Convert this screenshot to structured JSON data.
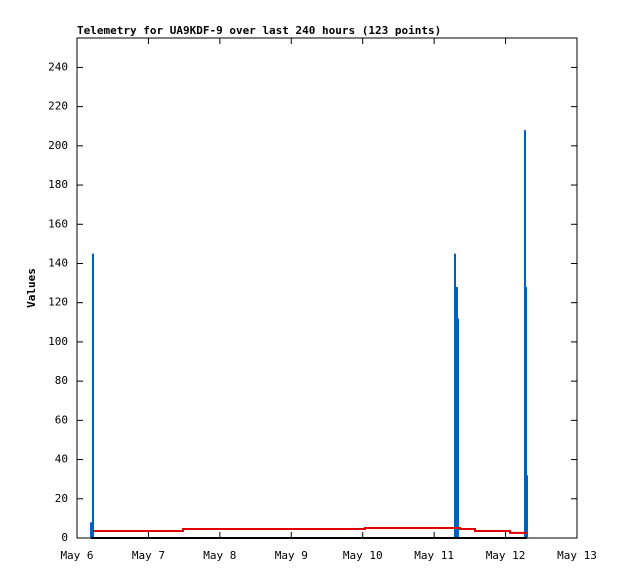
{
  "chart_data": {
    "type": "line",
    "title": "Telemetry for UA9KDF-9 over last 240 hours (123 points)",
    "y_label": "Values",
    "xlim": [
      6,
      13
    ],
    "xticks": [
      {
        "value": 6,
        "label": "May 6"
      },
      {
        "value": 7,
        "label": "May 7"
      },
      {
        "value": 8,
        "label": "May 8"
      },
      {
        "value": 9,
        "label": "May 9"
      },
      {
        "value": 10,
        "label": "May 10"
      },
      {
        "value": 11,
        "label": "May 11"
      },
      {
        "value": 12,
        "label": "May 12"
      },
      {
        "value": 13,
        "label": "May 13"
      }
    ],
    "ylim": [
      0,
      255
    ],
    "yticks": [
      0,
      20,
      40,
      60,
      80,
      100,
      120,
      140,
      160,
      180,
      200,
      220,
      240
    ],
    "series": [
      {
        "style": "impulses",
        "color": "#0060c0",
        "x": [
          6.196,
          6.224,
          11.292,
          11.306,
          11.32,
          11.334,
          12.272,
          12.286,
          12.3
        ],
        "values": [
          8,
          145,
          145,
          48,
          128,
          112,
          208,
          128,
          32
        ]
      },
      {
        "style": "lines",
        "color": "#e00000",
        "x": [
          6.224,
          7.484,
          7.484,
          10.032,
          10.032,
          11.362,
          11.362,
          11.572,
          11.572,
          12.062,
          12.062,
          12.3
        ],
        "values": [
          3.6,
          3.6,
          4.6,
          4.6,
          5.1,
          5.1,
          4.6,
          4.6,
          3.6,
          3.6,
          2.6,
          2.6
        ]
      },
      {
        "style": "lines",
        "color": "#000000",
        "x": [
          6.196,
          12.3
        ],
        "values": [
          0,
          0
        ]
      }
    ]
  }
}
